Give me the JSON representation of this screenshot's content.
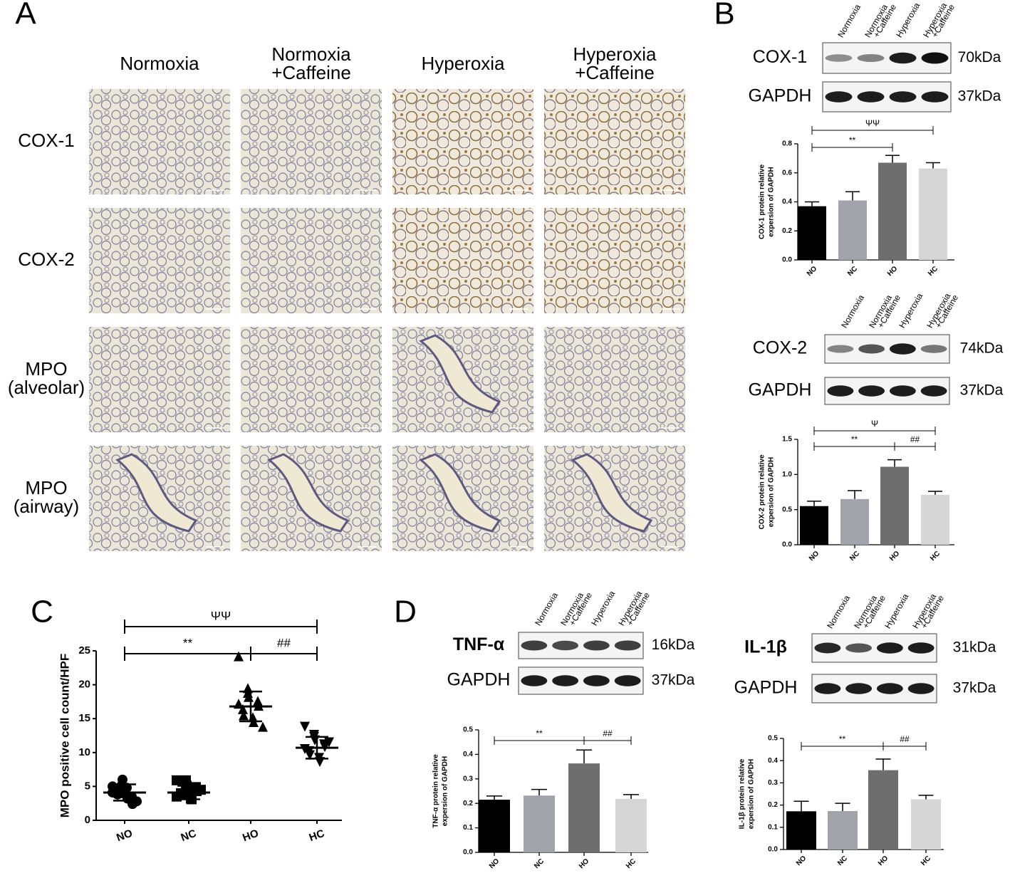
{
  "panels": [
    "A",
    "B",
    "C",
    "D"
  ],
  "histology": {
    "columns": [
      [
        "Normoxia"
      ],
      [
        "Normoxia",
        "+Caffeine"
      ],
      [
        "Hyperoxia"
      ],
      [
        "Hyperoxia",
        "+Caffeine"
      ]
    ],
    "rows": [
      [
        "COX-1"
      ],
      [
        "COX-2"
      ],
      [
        "MPO",
        "(alveolar)"
      ],
      [
        "MPO",
        "(airway)"
      ]
    ]
  },
  "blots": {
    "lanes": [
      [
        "Normoxia"
      ],
      [
        "Normoxia",
        "+Caffeine"
      ],
      [
        "Hyperoxia"
      ],
      [
        "Hyperoxia",
        "+Caffeine"
      ]
    ],
    "items": [
      {
        "protein": "COX-1",
        "size": "70kDa",
        "control": "GAPDH",
        "control_size": "37kDa"
      },
      {
        "protein": "COX-2",
        "size": "74kDa",
        "control": "GAPDH",
        "control_size": "37kDa"
      },
      {
        "protein": "TNF-α",
        "size": "16kDa",
        "control": "GAPDH",
        "control_size": "37kDa"
      },
      {
        "protein": "IL-1β",
        "size": "31kDa",
        "control": "GAPDH",
        "control_size": "37kDa"
      }
    ]
  },
  "chart_data": [
    {
      "type": "bar",
      "categories": [
        "NO",
        "NC",
        "HO",
        "HC"
      ],
      "values": [
        0.37,
        0.41,
        0.67,
        0.63
      ],
      "errors": [
        0.03,
        0.06,
        0.05,
        0.04
      ],
      "colors": [
        "#000000",
        "#a3a3ab",
        "#6e6e6e",
        "#d6d6d6"
      ],
      "ylabel": [
        "COX-1 protein relative",
        "expersion of GAPDH"
      ],
      "ylim": [
        0,
        0.8
      ],
      "yticks": [
        {
          "value": 0,
          "label": "0.0"
        },
        0.2,
        0.4,
        0.6,
        0.8
      ],
      "annotations": [
        {
          "text": "**",
          "from": "NO",
          "to": "HO"
        },
        {
          "text": "ΨΨ",
          "from": "NO",
          "to": "HC"
        }
      ]
    },
    {
      "type": "bar",
      "categories": [
        "NO",
        "NC",
        "HO",
        "HC"
      ],
      "values": [
        0.55,
        0.65,
        1.11,
        0.71
      ],
      "errors": [
        0.07,
        0.12,
        0.1,
        0.05
      ],
      "colors": [
        "#000000",
        "#a3a3ab",
        "#6e6e6e",
        "#d6d6d6"
      ],
      "ylabel": [
        "COX-2 protein relative",
        "expersion of GAPDH"
      ],
      "ylim": [
        0,
        1.5
      ],
      "yticks": [
        {
          "value": 0,
          "label": "0.0"
        },
        {
          "value": 0.5,
          "label": "0.5"
        },
        {
          "value": 1,
          "label": "1.0"
        },
        {
          "value": 1.5,
          "label": "1.5"
        }
      ],
      "annotations": [
        {
          "text": "**",
          "from": "NO",
          "to": "HO"
        },
        {
          "text": "##",
          "from": "HO",
          "to": "HC"
        },
        {
          "text": "Ψ",
          "from": "NO",
          "to": "HC"
        }
      ]
    },
    {
      "type": "scatter",
      "categories": [
        "NO",
        "NC",
        "HO",
        "HC"
      ],
      "groups": [
        {
          "marker": "circle",
          "values": [
            4.1,
            5.2,
            6.0,
            3.5,
            2.4,
            4.5,
            3.8,
            4.8,
            3.2,
            2.8,
            5.0,
            4.0
          ]
        },
        {
          "marker": "square",
          "values": [
            5.9,
            5.9,
            5.1,
            4.9,
            4.3,
            4.0,
            3.9,
            3.2,
            3.1,
            4.5,
            3.5,
            4.8
          ]
        },
        {
          "marker": "triangle-up",
          "values": [
            24.2,
            19.5,
            18.2,
            17.6,
            16.9,
            16.4,
            15.5,
            15.2,
            14.5,
            13.8,
            17.2,
            18.8
          ]
        },
        {
          "marker": "triangle-down",
          "values": [
            13.8,
            12.3,
            11.8,
            11.2,
            10.8,
            10.2,
            9.6,
            9.2,
            8.6,
            11.5,
            10.5,
            12.6
          ]
        }
      ],
      "means": [
        4.1,
        4.1,
        16.8,
        10.7
      ],
      "sds": [
        1.2,
        1.0,
        2.2,
        1.6
      ],
      "color": "#000000",
      "ylabel": "MPO positive cell count/HPF",
      "ylim": [
        0,
        25
      ],
      "yticks": [
        0,
        5,
        10,
        15,
        20,
        25
      ],
      "annotations": [
        {
          "text": "ΨΨ",
          "from": "NO",
          "to": "HC"
        },
        {
          "text": "**",
          "from": "NO",
          "to": "HO"
        },
        {
          "text": "##",
          "from": "HO",
          "to": "HC"
        }
      ]
    },
    {
      "type": "bar",
      "categories": [
        "NO",
        "NC",
        "HO",
        "HC"
      ],
      "values": [
        0.215,
        0.232,
        0.363,
        0.218
      ],
      "errors": [
        0.015,
        0.025,
        0.055,
        0.018
      ],
      "colors": [
        "#000000",
        "#a3a3ab",
        "#6e6e6e",
        "#d6d6d6"
      ],
      "ylabel": [
        "TNF-α protein relative",
        "expersion of GAPDH"
      ],
      "ylim": [
        0,
        0.5
      ],
      "yticks": [
        {
          "value": 0,
          "label": "0.0"
        },
        0.1,
        0.2,
        0.3,
        0.4,
        0.5
      ],
      "annotations": [
        {
          "text": "**",
          "from": "NO",
          "to": "HO"
        },
        {
          "text": "##",
          "from": "HO",
          "to": "HC"
        }
      ]
    },
    {
      "type": "bar",
      "categories": [
        "NO",
        "NC",
        "HO",
        "HC"
      ],
      "values": [
        0.172,
        0.173,
        0.357,
        0.226
      ],
      "errors": [
        0.045,
        0.035,
        0.05,
        0.018
      ],
      "colors": [
        "#000000",
        "#a3a3ab",
        "#6e6e6e",
        "#d6d6d6"
      ],
      "ylabel": [
        "IL-1β protein relative",
        "expersion of GAPDH"
      ],
      "ylim": [
        0,
        0.5
      ],
      "yticks": [
        {
          "value": 0,
          "label": "0.0"
        },
        0.1,
        0.2,
        0.3,
        0.4,
        0.5
      ],
      "annotations": [
        {
          "text": "**",
          "from": "NO",
          "to": "HO"
        },
        {
          "text": "##",
          "from": "HO",
          "to": "HC"
        }
      ]
    }
  ]
}
